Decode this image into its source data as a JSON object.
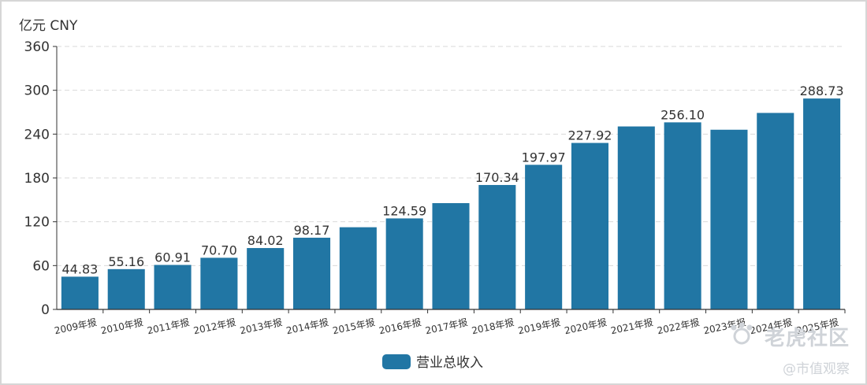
{
  "unit_label": "亿元  CNY",
  "watermark": {
    "main": "老虎社区",
    "sub": "@市值观察"
  },
  "colors": {
    "bar": "#2176a4",
    "axis": "#333333",
    "grid": "#d9d9d9",
    "text": "#333333"
  },
  "chart_data": {
    "type": "bar",
    "categories": [
      "2009年报",
      "2010年报",
      "2011年报",
      "2012年报",
      "2013年报",
      "2014年报",
      "2015年报",
      "2016年报",
      "2017年报",
      "2018年报",
      "2019年报",
      "2020年报",
      "2021年报",
      "2022年报",
      "2023年报",
      "2024年报",
      "2025年报"
    ],
    "series": [
      {
        "name": "营业总收入",
        "values": [
          44.83,
          55.16,
          60.91,
          70.7,
          84.02,
          98.17,
          112.5,
          124.59,
          145.5,
          170.34,
          197.97,
          227.92,
          250.5,
          256.1,
          246.0,
          269.0,
          288.73
        ],
        "labels": [
          "44.83",
          "55.16",
          "60.91",
          "70.70",
          "84.02",
          "98.17",
          "",
          "124.59",
          "",
          "170.34",
          "197.97",
          "227.92",
          "",
          "256.10",
          "",
          "",
          "288.73"
        ]
      }
    ],
    "yticks": [
      "0",
      "60",
      "120",
      "180",
      "240",
      "300",
      "360"
    ],
    "ylim": [
      0,
      360
    ],
    "grid": true,
    "legend_position": "bottom-center"
  }
}
